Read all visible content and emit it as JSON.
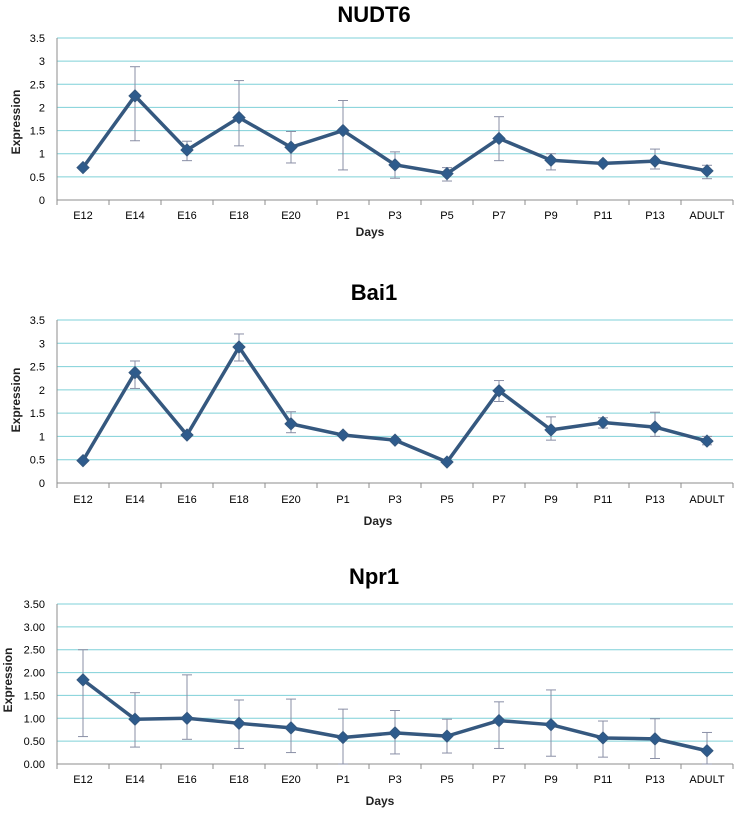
{
  "colors": {
    "line": "#35587f",
    "marker": "#2e5b8c",
    "grid": "#7fd0d8",
    "error": "#8a8fa6"
  },
  "chart_data": [
    {
      "type": "line",
      "title": "NUDT6",
      "xlabel": "Days",
      "ylabel": "Expression",
      "ylim": [
        0,
        3.5
      ],
      "yticks": [
        "0",
        "0.5",
        "1",
        "1.5",
        "2",
        "2.5",
        "3",
        "3.5"
      ],
      "categories": [
        "E12",
        "E14",
        "E16",
        "E18",
        "E20",
        "P1",
        "P3",
        "P5",
        "P7",
        "P9",
        "P11",
        "P13",
        "ADULT"
      ],
      "values": [
        0.7,
        2.25,
        1.08,
        1.78,
        1.14,
        1.5,
        0.76,
        0.57,
        1.33,
        0.86,
        0.79,
        0.84,
        0.63
      ],
      "error_high": [
        null,
        2.88,
        1.27,
        2.58,
        1.48,
        2.15,
        1.04,
        0.7,
        1.8,
        1.0,
        null,
        1.1,
        0.75
      ],
      "error_low": [
        null,
        1.28,
        0.85,
        1.17,
        0.8,
        0.65,
        0.47,
        0.41,
        0.85,
        0.65,
        null,
        0.67,
        0.46
      ],
      "grid": true,
      "legend": "none"
    },
    {
      "type": "line",
      "title": "Bai1",
      "xlabel": "Days",
      "ylabel": "Expression",
      "ylim": [
        0,
        3.5
      ],
      "yticks": [
        "0",
        "0.5",
        "1",
        "1.5",
        "2",
        "2.5",
        "3",
        "3.5"
      ],
      "categories": [
        "E12",
        "E14",
        "E16",
        "E18",
        "E20",
        "P1",
        "P3",
        "P5",
        "P7",
        "P9",
        "P11",
        "P13",
        "ADULT"
      ],
      "values": [
        0.48,
        2.37,
        1.03,
        2.92,
        1.27,
        1.03,
        0.92,
        0.45,
        1.98,
        1.14,
        1.3,
        1.2,
        0.9
      ],
      "error_high": [
        null,
        2.62,
        null,
        3.2,
        1.53,
        null,
        null,
        null,
        2.2,
        1.42,
        1.4,
        1.52,
        1.0
      ],
      "error_low": [
        null,
        2.03,
        null,
        2.62,
        1.08,
        null,
        null,
        null,
        1.75,
        0.92,
        1.18,
        1.0,
        0.82
      ],
      "grid": true,
      "legend": "none"
    },
    {
      "type": "line",
      "title": "Npr1",
      "xlabel": "Days",
      "ylabel": "Expression",
      "ylim": [
        0,
        3.5
      ],
      "yticks": [
        "0.00",
        "0.50",
        "1.00",
        "1.50",
        "2.00",
        "2.50",
        "3.00",
        "3.50"
      ],
      "categories": [
        "E12",
        "E14",
        "E16",
        "E18",
        "E20",
        "P1",
        "P3",
        "P5",
        "P7",
        "P9",
        "P11",
        "P13",
        "ADULT"
      ],
      "values": [
        1.84,
        0.98,
        1.0,
        0.89,
        0.79,
        0.58,
        0.68,
        0.61,
        0.95,
        0.86,
        0.57,
        0.55,
        0.29
      ],
      "error_high": [
        2.5,
        1.56,
        1.95,
        1.4,
        1.42,
        1.2,
        1.17,
        0.98,
        1.36,
        1.62,
        0.94,
        0.99,
        0.69
      ],
      "error_low": [
        0.6,
        0.37,
        0.54,
        0.34,
        0.25,
        0.0,
        0.22,
        0.24,
        0.34,
        0.17,
        0.15,
        0.12,
        0.0
      ],
      "grid": true,
      "legend": "none"
    }
  ]
}
